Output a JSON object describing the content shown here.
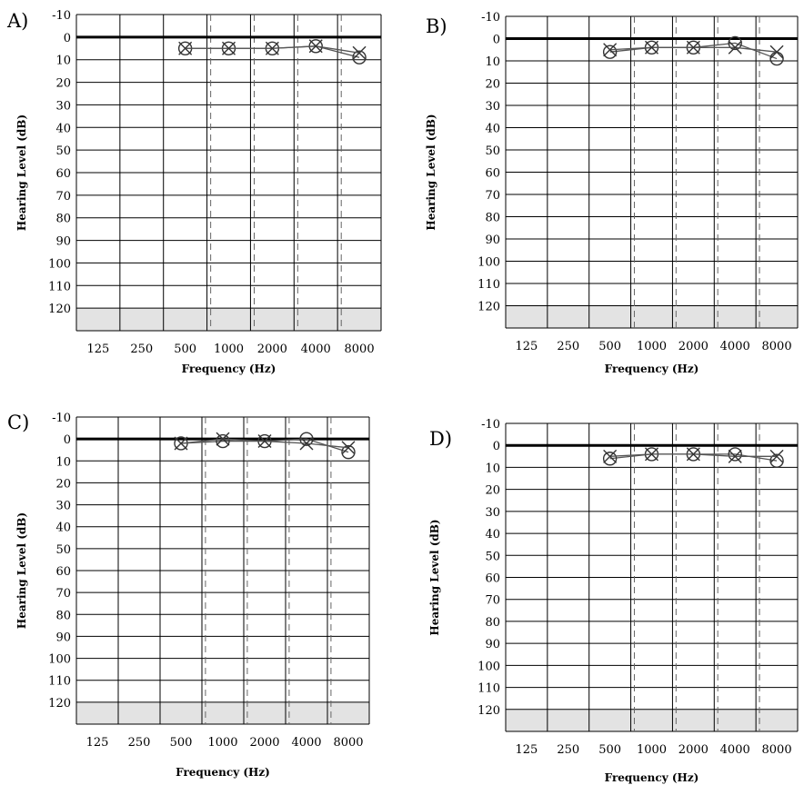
{
  "chart_data": [
    {
      "panel_label": "A)",
      "type": "line",
      "xlabel": "Frequency (Hz)",
      "ylabel": "Hearing Level (dB)",
      "x_ticks": [
        "125",
        "250",
        "500",
        "1000",
        "2000",
        "4000",
        "8000"
      ],
      "y_ticks": [
        "-10",
        "0",
        "10",
        "20",
        "30",
        "40",
        "50",
        "60",
        "70",
        "80",
        "90",
        "100",
        "110",
        "120"
      ],
      "ylim": [
        -10,
        130
      ],
      "y_inverted": true,
      "shaded_region": [
        120,
        130
      ],
      "series": [
        {
          "marker": "circle",
          "x": [
            500,
            1000,
            2000,
            4000,
            8000
          ],
          "values": [
            5,
            5,
            5,
            4,
            9
          ]
        },
        {
          "marker": "cross",
          "x": [
            500,
            1000,
            2000,
            4000,
            8000
          ],
          "values": [
            5,
            5,
            5,
            4,
            7
          ]
        }
      ]
    },
    {
      "panel_label": "B)",
      "type": "line",
      "xlabel": "Frequency (Hz)",
      "ylabel": "Hearing Level (dB)",
      "x_ticks": [
        "125",
        "250",
        "500",
        "1000",
        "2000",
        "4000",
        "8000"
      ],
      "y_ticks": [
        "-10",
        "0",
        "10",
        "20",
        "30",
        "40",
        "50",
        "60",
        "70",
        "80",
        "90",
        "100",
        "110",
        "120"
      ],
      "ylim": [
        -10,
        130
      ],
      "y_inverted": true,
      "shaded_region": [
        120,
        130
      ],
      "series": [
        {
          "marker": "circle",
          "x": [
            500,
            1000,
            2000,
            4000,
            8000
          ],
          "values": [
            6,
            4,
            4,
            2,
            9
          ]
        },
        {
          "marker": "cross",
          "x": [
            500,
            1000,
            2000,
            4000,
            8000
          ],
          "values": [
            5,
            4,
            4,
            4,
            6
          ]
        }
      ]
    },
    {
      "panel_label": "C)",
      "type": "line",
      "xlabel": "Frequency (Hz)",
      "ylabel": "Hearing Level (dB)",
      "x_ticks": [
        "125",
        "250",
        "500",
        "1000",
        "2000",
        "4000",
        "8000"
      ],
      "y_ticks": [
        "-10",
        "0",
        "10",
        "20",
        "30",
        "40",
        "50",
        "60",
        "70",
        "80",
        "90",
        "100",
        "110",
        "120"
      ],
      "ylim": [
        -10,
        130
      ],
      "y_inverted": true,
      "shaded_region": [
        120,
        130
      ],
      "series": [
        {
          "marker": "circle",
          "x": [
            500,
            1000,
            2000,
            4000,
            8000
          ],
          "values": [
            2,
            1,
            1,
            0,
            6
          ]
        },
        {
          "marker": "cross",
          "x": [
            500,
            1000,
            2000,
            4000,
            8000
          ],
          "values": [
            2,
            0,
            1,
            2,
            4
          ]
        }
      ]
    },
    {
      "panel_label": "D)",
      "type": "line",
      "xlabel": "Frequency (Hz)",
      "ylabel": "Hearing Level (dB)",
      "x_ticks": [
        "125",
        "250",
        "500",
        "1000",
        "2000",
        "4000",
        "8000"
      ],
      "y_ticks": [
        "-10",
        "0",
        "10",
        "20",
        "30",
        "40",
        "50",
        "60",
        "70",
        "80",
        "90",
        "100",
        "110",
        "120"
      ],
      "ylim": [
        -10,
        130
      ],
      "y_inverted": true,
      "shaded_region": [
        120,
        130
      ],
      "series": [
        {
          "marker": "circle",
          "x": [
            500,
            1000,
            2000,
            4000,
            8000
          ],
          "values": [
            6,
            4,
            4,
            4,
            7
          ]
        },
        {
          "marker": "cross",
          "x": [
            500,
            1000,
            2000,
            4000,
            8000
          ],
          "values": [
            5,
            4,
            4,
            5,
            5
          ]
        }
      ]
    }
  ],
  "colors": {
    "line": "#555555",
    "marker": "#333333",
    "grid": "#000000",
    "dashed": "#666666",
    "shade": "#e3e3e3",
    "zero_line": "#000000"
  }
}
